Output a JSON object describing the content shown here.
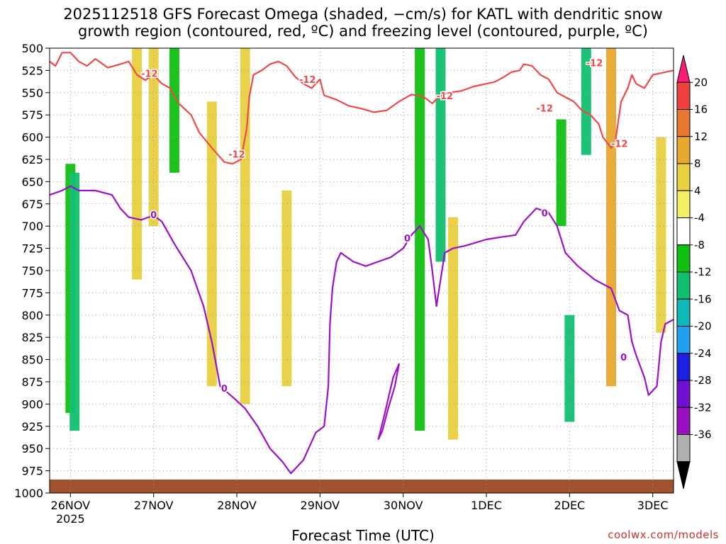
{
  "chart_data": {
    "type": "heatmap",
    "title": "2025112518 GFS Forecast Omega (shaded, −cm/s) for KATL with dendritic snow",
    "subtitle": "growth region (contoured, red, ºC) and freezing level (contoured, purple, ºC)",
    "xlabel": "Forecast Time (UTC)",
    "credit": "coolwx.com/models",
    "y_axis": {
      "units": "hPa",
      "ticks": [
        500,
        525,
        550,
        575,
        600,
        625,
        650,
        675,
        700,
        725,
        750,
        775,
        800,
        825,
        850,
        875,
        900,
        925,
        950,
        975,
        1000
      ],
      "range": [
        1000,
        500
      ]
    },
    "x_axis": {
      "units": "days since 2025-11-26 00Z",
      "range": [
        -0.25,
        7.25
      ],
      "ticks": [
        {
          "value": 0,
          "label": "26NOV",
          "sublabel": "2025"
        },
        {
          "value": 1,
          "label": "27NOV"
        },
        {
          "value": 2,
          "label": "28NOV"
        },
        {
          "value": 3,
          "label": "29NOV"
        },
        {
          "value": 4,
          "label": "30NOV"
        },
        {
          "value": 5,
          "label": "1DEC"
        },
        {
          "value": 6,
          "label": "2DEC"
        },
        {
          "value": 7,
          "label": "3DEC"
        }
      ]
    },
    "grid": true,
    "colorbar": {
      "labels": [
        "20",
        "16",
        "12",
        "8",
        "4",
        "-4",
        "-8",
        "-12",
        "-16",
        "-20",
        "-24",
        "-28",
        "-32",
        "-36"
      ],
      "colors": [
        "#ff1a7a",
        "#f04040",
        "#e87830",
        "#e8a830",
        "#e8d040",
        "#f0f060",
        "#ffffff",
        "#10c010",
        "#10c070",
        "#10b8b8",
        "#20a0f0",
        "#2020e0",
        "#7010d0",
        "#9a10c0",
        "#b0b0b0",
        "#000000"
      ]
    },
    "shading": [
      {
        "t": 0.0,
        "p1": 630,
        "p2": 910,
        "value": -6
      },
      {
        "t": 0.05,
        "p1": 640,
        "p2": 930,
        "value": -8
      },
      {
        "t": 0.8,
        "p1": 500,
        "p2": 760,
        "value": 6
      },
      {
        "t": 1.0,
        "p1": 500,
        "p2": 700,
        "value": 6
      },
      {
        "t": 1.25,
        "p1": 500,
        "p2": 640,
        "value": -7
      },
      {
        "t": 1.7,
        "p1": 560,
        "p2": 880,
        "value": 6
      },
      {
        "t": 2.1,
        "p1": 500,
        "p2": 900,
        "value": 6
      },
      {
        "t": 2.6,
        "p1": 660,
        "p2": 880,
        "value": 6
      },
      {
        "t": 4.2,
        "p1": 500,
        "p2": 930,
        "value": -7
      },
      {
        "t": 4.45,
        "p1": 500,
        "p2": 740,
        "value": -10
      },
      {
        "t": 4.6,
        "p1": 690,
        "p2": 940,
        "value": 6
      },
      {
        "t": 5.9,
        "p1": 580,
        "p2": 700,
        "value": -7
      },
      {
        "t": 6.0,
        "p1": 800,
        "p2": 920,
        "value": -8
      },
      {
        "t": 6.2,
        "p1": 500,
        "p2": 620,
        "value": -11
      },
      {
        "t": 6.5,
        "p1": 500,
        "p2": 880,
        "value": 9
      },
      {
        "t": 7.1,
        "p1": 600,
        "p2": 820,
        "value": 6
      }
    ],
    "contours": [
      {
        "name": "-12",
        "color": "#f04848",
        "labels": [
          [
            0.95,
            529
          ],
          [
            2.0,
            620
          ],
          [
            2.85,
            536
          ],
          [
            4.5,
            554
          ],
          [
            5.7,
            568
          ],
          [
            6.3,
            517
          ],
          [
            6.6,
            608
          ]
        ],
        "points": [
          [
            -0.25,
            515
          ],
          [
            -0.18,
            520
          ],
          [
            -0.1,
            505
          ],
          [
            0.0,
            505
          ],
          [
            0.1,
            515
          ],
          [
            0.2,
            520
          ],
          [
            0.3,
            512
          ],
          [
            0.45,
            522
          ],
          [
            0.6,
            518
          ],
          [
            0.7,
            515
          ],
          [
            0.8,
            530
          ],
          [
            0.9,
            536
          ],
          [
            1.0,
            530
          ],
          [
            1.1,
            540
          ],
          [
            1.2,
            545
          ],
          [
            1.3,
            562
          ],
          [
            1.45,
            575
          ],
          [
            1.55,
            595
          ],
          [
            1.7,
            612
          ],
          [
            1.85,
            628
          ],
          [
            1.95,
            630
          ],
          [
            2.05,
            625
          ],
          [
            2.12,
            590
          ],
          [
            2.15,
            555
          ],
          [
            2.2,
            530
          ],
          [
            2.3,
            525
          ],
          [
            2.4,
            518
          ],
          [
            2.5,
            515
          ],
          [
            2.6,
            520
          ],
          [
            2.7,
            532
          ],
          [
            2.8,
            540
          ],
          [
            2.9,
            545
          ],
          [
            3.0,
            535
          ],
          [
            3.05,
            553
          ],
          [
            3.2,
            558
          ],
          [
            3.35,
            565
          ],
          [
            3.5,
            568
          ],
          [
            3.65,
            572
          ],
          [
            3.8,
            570
          ],
          [
            3.95,
            560
          ],
          [
            4.1,
            552
          ],
          [
            4.25,
            555
          ],
          [
            4.35,
            562
          ],
          [
            4.45,
            553
          ],
          [
            4.55,
            550
          ],
          [
            4.7,
            548
          ],
          [
            4.85,
            543
          ],
          [
            5.0,
            540
          ],
          [
            5.1,
            538
          ],
          [
            5.2,
            533
          ],
          [
            5.3,
            527
          ],
          [
            5.4,
            525
          ],
          [
            5.45,
            518
          ],
          [
            5.55,
            520
          ],
          [
            5.65,
            530
          ],
          [
            5.75,
            535
          ],
          [
            5.85,
            550
          ],
          [
            5.95,
            555
          ],
          [
            6.05,
            560
          ],
          [
            6.15,
            570
          ],
          [
            6.25,
            575
          ],
          [
            6.35,
            585
          ],
          [
            6.4,
            600
          ],
          [
            6.5,
            612
          ],
          [
            6.55,
            605
          ],
          [
            6.62,
            560
          ],
          [
            6.7,
            545
          ],
          [
            6.75,
            530
          ],
          [
            6.8,
            540
          ],
          [
            6.9,
            545
          ],
          [
            7.0,
            530
          ],
          [
            7.25,
            525
          ]
        ]
      },
      {
        "name": "0",
        "color": "#9d10c8",
        "labels": [
          [
            1.0,
            688
          ],
          [
            1.85,
            883
          ],
          [
            4.05,
            714
          ],
          [
            5.7,
            686
          ],
          [
            6.65,
            848
          ]
        ],
        "points": [
          [
            -0.25,
            665
          ],
          [
            -0.1,
            660
          ],
          [
            0.0,
            655
          ],
          [
            0.1,
            660
          ],
          [
            0.3,
            660
          ],
          [
            0.5,
            665
          ],
          [
            0.6,
            680
          ],
          [
            0.7,
            690
          ],
          [
            0.85,
            693
          ],
          [
            1.0,
            688
          ],
          [
            1.1,
            695
          ],
          [
            1.25,
            720
          ],
          [
            1.45,
            750
          ],
          [
            1.6,
            790
          ],
          [
            1.7,
            830
          ],
          [
            1.75,
            855
          ],
          [
            1.8,
            880
          ],
          [
            1.95,
            892
          ],
          [
            2.1,
            905
          ],
          [
            2.25,
            925
          ],
          [
            2.4,
            950
          ],
          [
            2.55,
            965
          ],
          [
            2.65,
            978
          ],
          [
            2.8,
            963
          ],
          [
            2.95,
            932
          ],
          [
            3.05,
            925
          ],
          [
            3.1,
            880
          ],
          [
            3.12,
            810
          ],
          [
            3.15,
            770
          ],
          [
            3.2,
            740
          ],
          [
            3.25,
            730
          ],
          [
            3.4,
            740
          ],
          [
            3.55,
            745
          ],
          [
            3.7,
            740
          ],
          [
            3.85,
            735
          ],
          [
            4.0,
            725
          ],
          [
            4.1,
            710
          ],
          [
            4.2,
            700
          ],
          [
            4.3,
            715
          ],
          [
            4.35,
            750
          ],
          [
            4.4,
            790
          ],
          [
            4.45,
            760
          ],
          [
            4.5,
            730
          ],
          [
            4.6,
            725
          ],
          [
            4.75,
            722
          ],
          [
            5.0,
            715
          ],
          [
            5.2,
            712
          ],
          [
            5.35,
            710
          ],
          [
            5.45,
            695
          ],
          [
            5.6,
            680
          ],
          [
            5.75,
            685
          ],
          [
            5.85,
            700
          ],
          [
            5.95,
            730
          ],
          [
            6.1,
            745
          ],
          [
            6.3,
            760
          ],
          [
            6.5,
            770
          ],
          [
            6.6,
            795
          ],
          [
            6.7,
            800
          ],
          [
            6.75,
            830
          ],
          [
            6.8,
            845
          ],
          [
            6.9,
            870
          ],
          [
            6.95,
            890
          ],
          [
            7.05,
            880
          ],
          [
            7.1,
            830
          ],
          [
            7.15,
            810
          ],
          [
            7.25,
            805
          ]
        ]
      },
      {
        "name": "0b",
        "color": "#9d10c8",
        "labels": [],
        "points": [
          [
            3.7,
            940
          ],
          [
            3.78,
            910
          ],
          [
            3.83,
            890
          ],
          [
            3.88,
            870
          ],
          [
            3.95,
            855
          ],
          [
            3.9,
            880
          ],
          [
            3.82,
            905
          ],
          [
            3.75,
            930
          ],
          [
            3.7,
            940
          ]
        ]
      }
    ]
  }
}
